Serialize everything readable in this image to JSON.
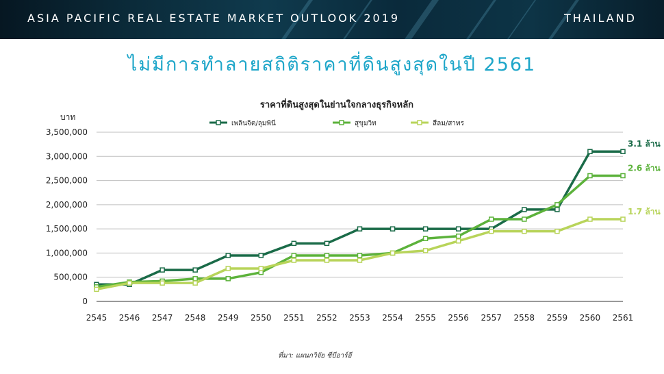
{
  "header": {
    "banner_title": "ASIA PACIFIC REAL ESTATE MARKET OUTLOOK 2019",
    "country": "THAILAND",
    "headline": "ไม่มีการทำลายสถิติราคาที่ดินสูงสุดในปี 2561"
  },
  "chart_data": {
    "type": "line",
    "title": "ราคาที่ดินสูงสุดในย่านใจกลางธุรกิจหลัก",
    "ylabel": "บาท",
    "xlabel": "",
    "ylim": [
      0,
      3500000
    ],
    "y_ticks": [
      "0",
      "500,000",
      "1,000,000",
      "1,500,000",
      "2,000,000",
      "2,500,000",
      "3,000,000",
      "3,500,000"
    ],
    "x": [
      "2545",
      "2546",
      "2547",
      "2548",
      "2549",
      "2550",
      "2551",
      "2552",
      "2553",
      "2554",
      "2555",
      "2556",
      "2557",
      "2558",
      "2559",
      "2560",
      "2561"
    ],
    "grid": true,
    "legend_position": "top",
    "series": [
      {
        "name": "เพลินจิต/ลุมพินี",
        "color": "#1a6b48",
        "values": [
          350000,
          350000,
          650000,
          650000,
          950000,
          950000,
          1200000,
          1200000,
          1500000,
          1500000,
          1500000,
          1500000,
          1500000,
          1900000,
          1900000,
          3100000,
          3100000
        ],
        "end_label": "3.1 ล้าน"
      },
      {
        "name": "สุขุมวิท",
        "color": "#5cb23b",
        "values": [
          300000,
          400000,
          420000,
          470000,
          470000,
          600000,
          950000,
          950000,
          950000,
          1000000,
          1300000,
          1350000,
          1700000,
          1700000,
          2000000,
          2600000,
          2600000
        ],
        "end_label": "2.6 ล้าน"
      },
      {
        "name": "สีลม/สาทร",
        "color": "#b8d45a",
        "values": [
          250000,
          380000,
          380000,
          380000,
          680000,
          680000,
          850000,
          850000,
          850000,
          1000000,
          1050000,
          1250000,
          1450000,
          1450000,
          1450000,
          1700000,
          1700000
        ],
        "end_label": "1.7 ล้าน"
      }
    ]
  },
  "source_note": "ที่มา: แผนกวิจัย ซีบีอาร์อี"
}
